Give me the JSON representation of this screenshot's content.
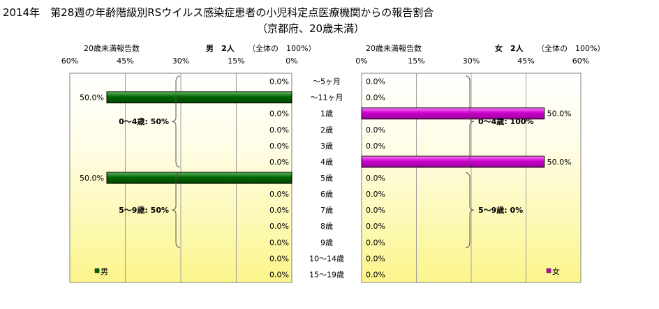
{
  "title": "2014年　第28週の年齢階級別RSウイルス感染症患者の小児科定点医療機関からの報告割合",
  "subtitle": "（京都府、20歳未満）",
  "chart_data": {
    "type": "bar",
    "categories": [
      "～5ヶ月",
      "～11ヶ月",
      "1歳",
      "2歳",
      "3歳",
      "4歳",
      "5歳",
      "6歳",
      "7歳",
      "8歳",
      "9歳",
      "10～14歳",
      "15～19歳"
    ],
    "axis_ticks": [
      "60%",
      "45%",
      "30%",
      "15%",
      "0%"
    ],
    "axis_ticks_right": [
      "0%",
      "15%",
      "30%",
      "45%",
      "60%"
    ],
    "xlim": [
      0,
      60
    ],
    "panels": [
      {
        "side": "left",
        "header_left": "20歳未満報告数",
        "header_total": "男　2人",
        "header_note": "（全体の　100%）",
        "series_name": "男",
        "color": "#006600",
        "values": [
          0,
          50,
          0,
          0,
          0,
          0,
          50,
          0,
          0,
          0,
          0,
          0,
          0
        ],
        "labels": [
          "0.0%",
          "50.0%",
          "0.0%",
          "0.0%",
          "0.0%",
          "0.0%",
          "50.0%",
          "0.0%",
          "0.0%",
          "0.0%",
          "0.0%",
          "0.0%",
          "0.0%"
        ],
        "annotations": [
          {
            "text": "0～4歳: 50%",
            "from": 0,
            "to": 5
          },
          {
            "text": "5～9歳: 50%",
            "from": 6,
            "to": 10
          }
        ]
      },
      {
        "side": "right",
        "header_left": "20歳未満報告数",
        "header_total": "女　2人",
        "header_note": "（全体の　100%）",
        "series_name": "女",
        "color": "#cc00cc",
        "values": [
          0,
          0,
          50,
          0,
          0,
          50,
          0,
          0,
          0,
          0,
          0,
          0,
          0
        ],
        "labels": [
          "0.0%",
          "0.0%",
          "50.0%",
          "0.0%",
          "0.0%",
          "50.0%",
          "0.0%",
          "0.0%",
          "0.0%",
          "0.0%",
          "0.0%",
          "0.0%",
          "0.0%"
        ],
        "annotations": [
          {
            "text": "0～4歳: 100%",
            "from": 0,
            "to": 5
          },
          {
            "text": "5～9歳: 0%",
            "from": 6,
            "to": 10
          }
        ]
      }
    ]
  }
}
